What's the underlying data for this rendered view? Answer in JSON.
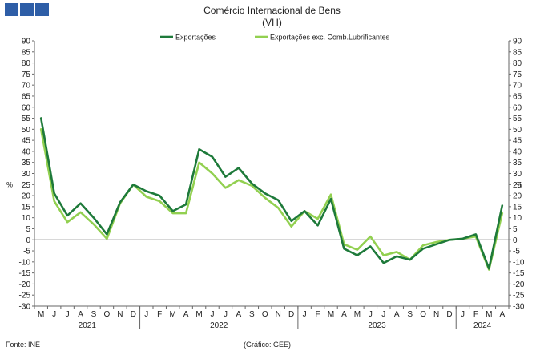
{
  "chart_data": {
    "type": "line",
    "title": "Comércio Internacional de Bens",
    "subtitle": "(VH)",
    "ylabel_left": "%",
    "ylabel_right": "%",
    "ylim": [
      -30,
      90
    ],
    "yticks": [
      90,
      85,
      80,
      75,
      70,
      65,
      60,
      55,
      50,
      45,
      40,
      35,
      30,
      25,
      20,
      15,
      10,
      5,
      0,
      -5,
      -10,
      -15,
      -20,
      -25,
      -30
    ],
    "months": [
      "M",
      "J",
      "J",
      "A",
      "S",
      "O",
      "N",
      "D",
      "J",
      "F",
      "M",
      "A",
      "M",
      "J",
      "J",
      "A",
      "S",
      "O",
      "N",
      "D",
      "J",
      "F",
      "M",
      "A",
      "M",
      "J",
      "J",
      "A",
      "S",
      "O",
      "N",
      "D",
      "J",
      "F",
      "M",
      "A"
    ],
    "years": [
      {
        "label": "2021",
        "start": 0,
        "end": 7
      },
      {
        "label": "2022",
        "start": 8,
        "end": 19
      },
      {
        "label": "2023",
        "start": 20,
        "end": 31
      },
      {
        "label": "2024",
        "start": 32,
        "end": 35
      }
    ],
    "series": [
      {
        "name": "Exportações",
        "color": "#1e7a3a",
        "values": [
          55,
          21,
          11,
          16.5,
          10,
          2.5,
          17,
          25,
          22,
          20,
          13,
          16,
          41,
          37.5,
          28.5,
          32.5,
          25.5,
          21,
          18,
          8.5,
          13,
          6.5,
          18.5,
          -4,
          -7,
          -3,
          -10.5,
          -7.5,
          -9,
          -4,
          -2,
          0,
          0.5,
          2.5,
          -13,
          15.5
        ]
      },
      {
        "name": "Exportações exc. Comb.Lubrificantes",
        "color": "#92d050",
        "values": [
          50,
          17.5,
          8,
          12.5,
          7,
          0.5,
          16.5,
          25,
          19.5,
          17.5,
          12,
          12,
          35,
          30,
          23.5,
          27,
          24.5,
          19,
          14.5,
          6,
          13,
          9.5,
          20.5,
          -2,
          -4.5,
          1.5,
          -7,
          -5.5,
          -9,
          -2.5,
          -1,
          0,
          0.5,
          1.5,
          -13.5,
          12
        ]
      }
    ],
    "legend": "top-center"
  },
  "header": {
    "brand_color": "#2e5ea7"
  },
  "footer": {
    "source": "Fonte: INE",
    "credit": "(Gráfico: GEE)"
  }
}
